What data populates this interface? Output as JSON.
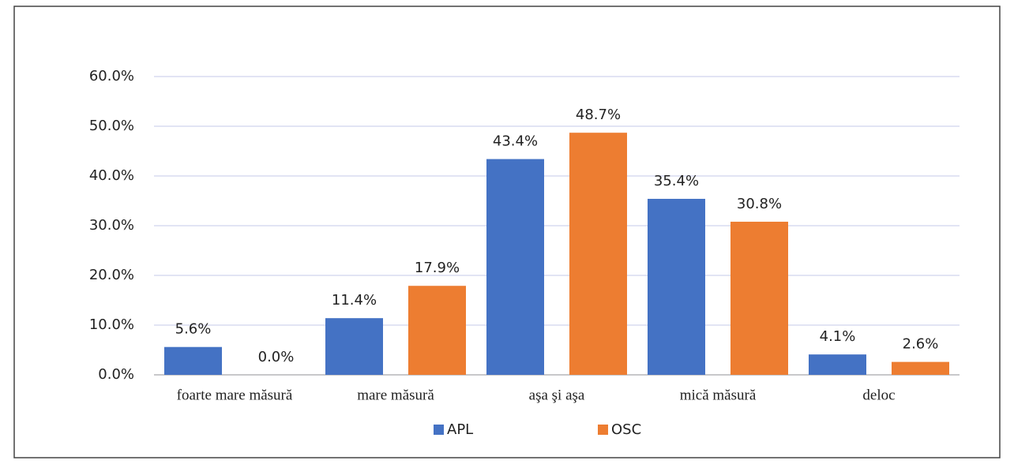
{
  "chart_data": {
    "type": "bar",
    "categories": [
      "foarte mare măsură",
      "mare măsură",
      "aşa şi aşa",
      "mică măsură",
      "deloc"
    ],
    "series": [
      {
        "name": "APL",
        "color": "#4472c4",
        "values": [
          5.6,
          11.4,
          43.4,
          35.4,
          4.1
        ],
        "value_labels": [
          "5.6%",
          "11.4%",
          "43.4%",
          "35.4%",
          "4.1%"
        ]
      },
      {
        "name": "OSC",
        "color": "#ed7d31",
        "values": [
          0.0,
          17.9,
          48.7,
          30.8,
          2.6
        ],
        "value_labels": [
          "0.0%",
          "17.9%",
          "48.7%",
          "30.8%",
          "2.6%"
        ]
      }
    ],
    "ylim": [
      0,
      60
    ],
    "yticks": [
      {
        "value": 0,
        "label": "0.0%"
      },
      {
        "value": 10,
        "label": "10.0%"
      },
      {
        "value": 20,
        "label": "20.0%"
      },
      {
        "value": 30,
        "label": "30.0%"
      },
      {
        "value": 40,
        "label": "40.0%"
      },
      {
        "value": 50,
        "label": "50.0%"
      },
      {
        "value": 60,
        "label": "60.0%"
      }
    ],
    "grid": true,
    "legend": "bottom"
  }
}
